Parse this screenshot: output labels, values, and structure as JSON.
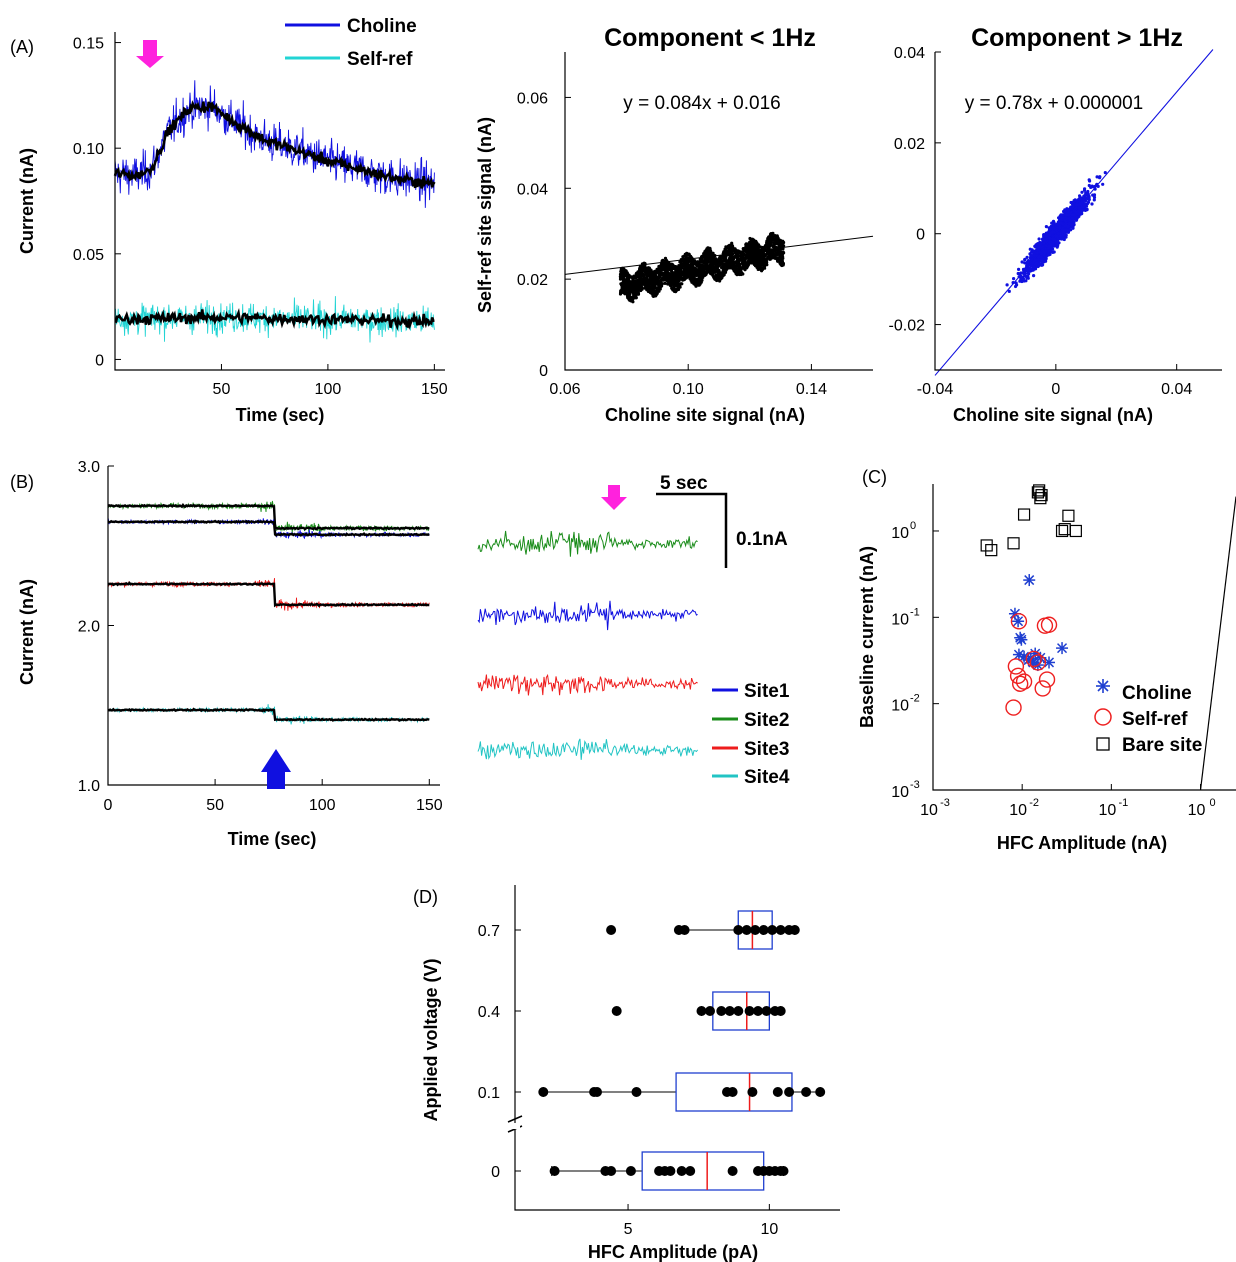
{
  "chart_data": [
    {
      "panel": "(A)",
      "type": "line",
      "xlabel": "Time (sec)",
      "ylabel": "Current (nA)",
      "xlim": [
        0,
        155
      ],
      "ylim": [
        -0.005,
        0.155
      ],
      "xticks": [
        "50",
        "100",
        "150"
      ],
      "xtick_values": [
        50,
        100,
        150
      ],
      "yticks": [
        "0",
        "0.05",
        "0.10",
        "0.15"
      ],
      "ytick_values": [
        0,
        0.05,
        0.1,
        0.15
      ],
      "legend": [
        "Choline",
        "Self-ref"
      ],
      "legend_position": "top-center",
      "colors": {
        "Choline": "#1010e0",
        "Self-ref": "#22d4d4",
        "smoothed": "#000000",
        "marker": "#ff22dd"
      },
      "series": [
        {
          "name": "Choline",
          "t": [
            0,
            10,
            17,
            25,
            35,
            45,
            55,
            70,
            85,
            100,
            115,
            130,
            150
          ],
          "values": [
            0.088,
            0.087,
            0.09,
            0.108,
            0.119,
            0.12,
            0.113,
            0.104,
            0.099,
            0.094,
            0.09,
            0.086,
            0.083
          ],
          "noise": 0.012
        },
        {
          "name": "Self-ref",
          "t": [
            0,
            50,
            100,
            150
          ],
          "values": [
            0.019,
            0.02,
            0.019,
            0.018
          ],
          "noise": 0.009
        }
      ],
      "arrow_t": 17
    },
    {
      "panel": "A-2",
      "type": "scatter",
      "title": "Component < 1Hz",
      "equation": "y = 0.084x + 0.016",
      "xlabel": "Choline site signal (nA)",
      "ylabel": "Self-ref site signal (nA)",
      "xlim": [
        0.06,
        0.16
      ],
      "ylim": [
        0,
        0.07
      ],
      "xticks": [
        "0.06",
        "0.10",
        "0.14"
      ],
      "xtick_values": [
        0.06,
        0.1,
        0.14
      ],
      "yticks": [
        "0",
        "0.02",
        "0.04",
        "0.06"
      ],
      "ytick_values": [
        0,
        0.02,
        0.04,
        0.06
      ],
      "fit": {
        "slope": 0.084,
        "intercept": 0.016
      },
      "cloud": {
        "x_range": [
          0.078,
          0.131
        ],
        "center_y": 0.0225,
        "spread": 0.0035
      },
      "color": "#000000"
    },
    {
      "panel": "A-3",
      "type": "scatter",
      "title": "Component > 1Hz",
      "equation": "y = 0.78x + 0.000001",
      "xlabel": "Choline site signal (nA)",
      "ylabel": "",
      "xlim": [
        -0.04,
        0.055
      ],
      "ylim": [
        -0.03,
        0.04
      ],
      "xticks": [
        "-0.04",
        "0",
        "0.04"
      ],
      "xtick_values": [
        -0.04,
        0,
        0.04
      ],
      "yticks": [
        "-0.02",
        "0",
        "0.02",
        "0.04"
      ],
      "ytick_values": [
        -0.02,
        0,
        0.02,
        0.04
      ],
      "fit": {
        "slope": 0.78,
        "intercept": 1e-06
      },
      "cloud": {
        "x_sd": 0.008,
        "y_resid_sd": 0.0018
      },
      "color": "#1010e0"
    },
    {
      "panel": "(B)",
      "type": "line",
      "xlabel": "Time (sec)",
      "ylabel": "Current (nA)",
      "xlim": [
        0,
        155
      ],
      "ylim": [
        1.0,
        3.0
      ],
      "xticks": [
        "0",
        "50",
        "100",
        "150"
      ],
      "xtick_values": [
        0,
        50,
        100,
        150
      ],
      "yticks": [
        "1.0",
        "2.0",
        "3.0"
      ],
      "ytick_values": [
        1.0,
        2.0,
        3.0
      ],
      "step_t": 78,
      "arrow_t": 77,
      "legend": [
        "Site1",
        "Site2",
        "Site3",
        "Site4"
      ],
      "legend_position": "right",
      "series": [
        {
          "name": "Site1",
          "color": "#1010e0",
          "before": 2.65,
          "after": 2.57,
          "noise": 0.018
        },
        {
          "name": "Site2",
          "color": "#1a8c1a",
          "before": 2.75,
          "after": 2.61,
          "noise": 0.025
        },
        {
          "name": "Site3",
          "color": "#ee1c1c",
          "before": 2.26,
          "after": 2.13,
          "noise": 0.022
        },
        {
          "name": "Site4",
          "color": "#22c4c4",
          "before": 1.47,
          "after": 1.41,
          "noise": 0.018
        }
      ],
      "scalebar": {
        "time": "5 sec",
        "amplitude": "0.1nA"
      },
      "marker_color": "#ff22dd"
    },
    {
      "panel": "(C)",
      "type": "scatter",
      "xscale": "log",
      "yscale": "log",
      "xlabel": "HFC Amplitude (nA)",
      "ylabel": "Baseline current (nA)",
      "xlim": [
        0.001,
        2.5
      ],
      "ylim": [
        0.001,
        3.5
      ],
      "xticks": [
        "10",
        "10",
        "10",
        "10"
      ],
      "xtick_exponents": [
        "-3",
        "-2",
        "-1",
        "0"
      ],
      "xtick_values": [
        0.001,
        0.01,
        0.1,
        1
      ],
      "yticks": [
        "10",
        "10",
        "10",
        "10"
      ],
      "ytick_exponents": [
        "-3",
        "-2",
        "-1",
        "0"
      ],
      "ytick_values": [
        0.001,
        0.01,
        0.1,
        1
      ],
      "legend_position": "right",
      "identity_line": true,
      "series": [
        {
          "name": "Choline",
          "marker": "asterisk",
          "color": "#1f3fd0",
          "x": [
            0.0083,
            0.009,
            0.0095,
            0.0098,
            0.0105,
            0.012,
            0.0125,
            0.0133,
            0.014,
            0.015,
            0.016,
            0.02,
            0.028,
            0.0118,
            0.0092
          ],
          "y": [
            0.11,
            0.09,
            0.058,
            0.055,
            0.035,
            0.27,
            0.033,
            0.03,
            0.038,
            0.028,
            0.034,
            0.03,
            0.044,
            0.032,
            0.037
          ]
        },
        {
          "name": "Self-ref",
          "marker": "circle",
          "color": "#ee2020",
          "x": [
            0.008,
            0.0085,
            0.009,
            0.0095,
            0.0105,
            0.0135,
            0.015,
            0.017,
            0.019,
            0.02,
            0.018,
            0.0092
          ],
          "y": [
            0.009,
            0.027,
            0.021,
            0.017,
            0.018,
            0.033,
            0.03,
            0.015,
            0.019,
            0.082,
            0.08,
            0.09
          ]
        },
        {
          "name": "Bare site",
          "marker": "square",
          "color": "#000000",
          "x": [
            0.004,
            0.0045,
            0.008,
            0.0105,
            0.015,
            0.0155,
            0.016,
            0.0165,
            0.028,
            0.033,
            0.03,
            0.04
          ],
          "y": [
            0.68,
            0.6,
            0.72,
            1.55,
            2.8,
            2.95,
            2.4,
            2.6,
            1.0,
            1.5,
            1.05,
            1.0
          ]
        }
      ]
    },
    {
      "panel": "(D)",
      "type": "box",
      "xlabel": "HFC Amplitude (pA)",
      "ylabel": "Applied voltage (V)",
      "xlim": [
        1,
        12.5
      ],
      "xticks": [
        "5",
        "10"
      ],
      "xtick_values": [
        5,
        10
      ],
      "categories": [
        "0",
        "0.1",
        "0.4",
        "0.7"
      ],
      "box_color": "#1f3fd0",
      "median_color": "#ee1c1c",
      "groups": [
        {
          "label": "0",
          "whisker": [
            2.3,
            10.5
          ],
          "q1": 5.5,
          "median": 7.8,
          "q3": 9.8,
          "points": [
            2.4,
            4.2,
            4.4,
            5.1,
            6.1,
            6.3,
            6.5,
            6.9,
            7.2,
            8.7,
            9.6,
            9.8,
            10.0,
            10.2,
            10.4,
            10.5
          ]
        },
        {
          "label": "0.1",
          "whisker": [
            2.0,
            11.8
          ],
          "q1": 6.7,
          "median": 9.3,
          "q3": 10.8,
          "points": [
            2.0,
            3.8,
            3.9,
            5.3,
            8.5,
            8.7,
            9.4,
            10.3,
            10.7,
            11.3,
            11.8
          ]
        },
        {
          "label": "0.4",
          "whisker": [
            7.6,
            10.4
          ],
          "q1": 8.0,
          "median": 9.2,
          "q3": 10.0,
          "points": [
            4.6,
            7.6,
            7.9,
            8.3,
            8.6,
            8.9,
            9.3,
            9.6,
            9.9,
            10.2,
            10.4
          ]
        },
        {
          "label": "0.7",
          "whisker": [
            6.8,
            10.9
          ],
          "q1": 8.9,
          "median": 9.4,
          "q3": 10.1,
          "points": [
            4.4,
            6.8,
            7.0,
            8.9,
            9.2,
            9.5,
            9.8,
            10.1,
            10.4,
            10.7,
            10.9
          ]
        }
      ]
    }
  ]
}
